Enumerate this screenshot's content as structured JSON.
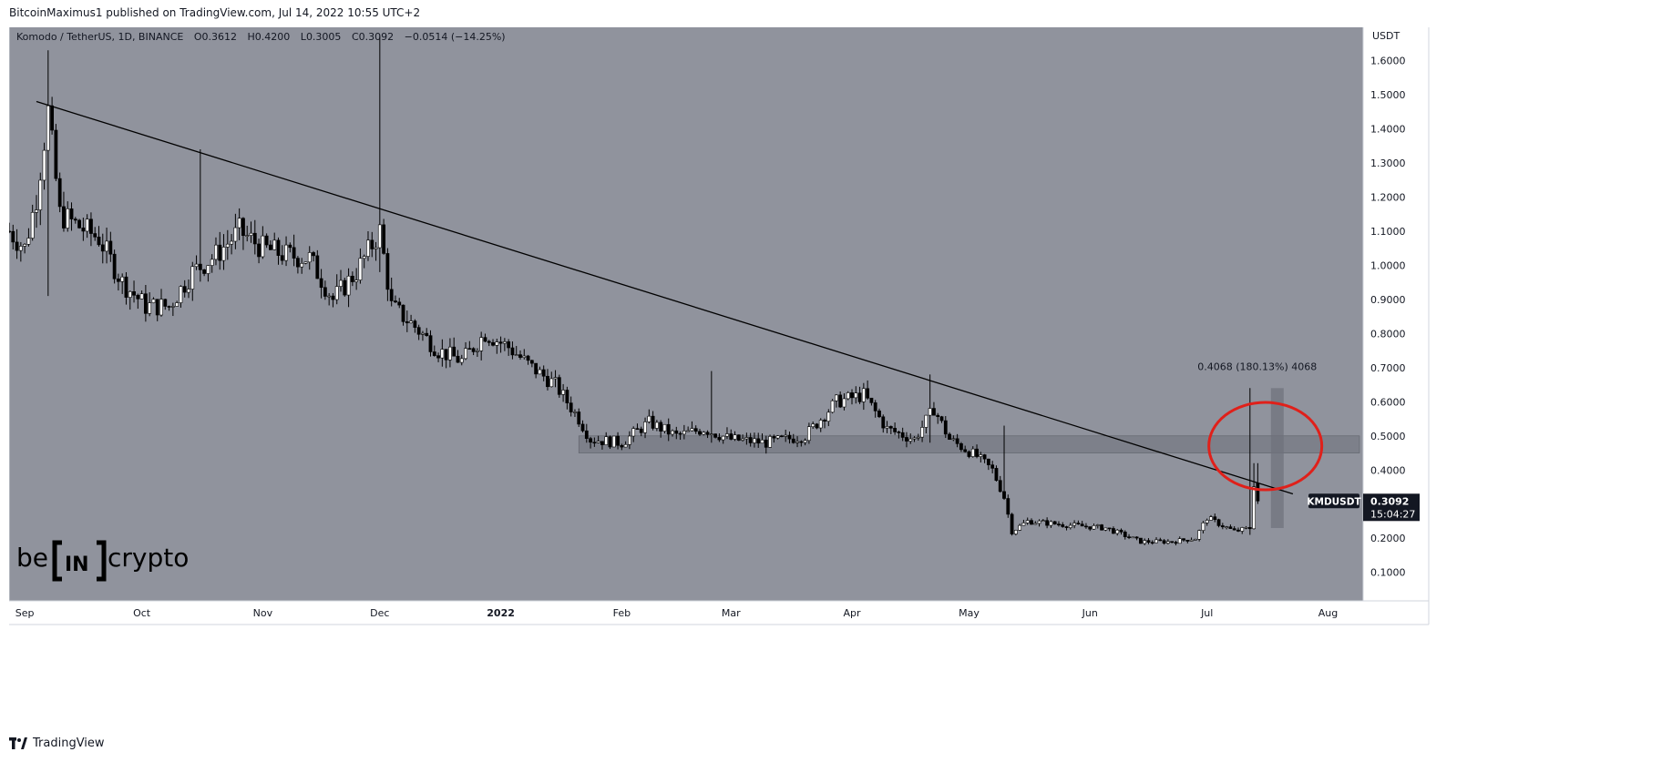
{
  "header": {
    "published_by": "BitcoinMaximus1 published on TradingView.com, Jul 14, 2022 10:55 UTC+2"
  },
  "legend": {
    "symbol_description": "Komodo / TetherUS, 1D, BINANCE",
    "o_label": "O",
    "o_value": "0.3612",
    "h_label": "H",
    "h_value": "0.4200",
    "l_label": "L",
    "l_value": "0.3005",
    "c_label": "C",
    "c_value": "0.3092",
    "change": "−0.0514 (−14.25%)"
  },
  "price_axis": {
    "currency": "USDT"
  },
  "last_price": {
    "ticker": "KMDUSDT",
    "price": "0.3092",
    "countdown": "15:04:27"
  },
  "measure": {
    "label": "0.4068 (180.13%) 4068"
  },
  "watermark": {
    "be": "be",
    "in": "IN",
    "crypto": "crypto"
  },
  "footer": {
    "brand": "TradingView"
  },
  "colors": {
    "chart_bg": "#90939d",
    "candle_up": "#ffffff",
    "candle_down": "#000000",
    "trendline": "#000000",
    "support_zone": "#6e717a",
    "circle": "#e0201a",
    "price_tag_bg": "#131722"
  },
  "chart_data": {
    "type": "candlestick",
    "symbol": "Komodo / TetherUS",
    "interval": "1D",
    "exchange": "BINANCE",
    "y_axis": {
      "unit": "USDT",
      "ylim": [
        0.05,
        1.75
      ],
      "ticks": [
        "1.6000",
        "1.5000",
        "1.4000",
        "1.3000",
        "1.2000",
        "1.1000",
        "1.0000",
        "0.9000",
        "0.8000",
        "0.7000",
        "0.6000",
        "0.5000",
        "0.4000",
        "0.3000",
        "0.2000",
        "0.1000"
      ]
    },
    "x_axis": {
      "ticks": [
        "Sep",
        "Oct",
        "Nov",
        "Dec",
        "2022",
        "Feb",
        "Mar",
        "Apr",
        "May",
        "Jun",
        "Jul",
        "Aug"
      ]
    },
    "x_range": [
      "2021-08-28",
      "2022-08-10"
    ],
    "grid": false,
    "trendline": {
      "from": {
        "date": "2021-09-04",
        "price": 1.48
      },
      "to": {
        "date": "2022-07-23",
        "price": 0.33
      }
    },
    "support_zone": {
      "from_date": "2022-01-21",
      "to_date": "2022-08-10",
      "low": 0.45,
      "high": 0.5
    },
    "highlight_circle": {
      "date": "2022-07-15",
      "price": 0.47
    },
    "measure_bar": {
      "date": "2022-07-19",
      "low": 0.23,
      "high": 0.64
    },
    "path": [
      {
        "date": "2021-08-28",
        "price": 1.1
      },
      {
        "date": "2021-09-01",
        "price": 1.05
      },
      {
        "date": "2021-09-04",
        "price": 1.2
      },
      {
        "date": "2021-09-07",
        "price": 1.45
      },
      {
        "date": "2021-09-10",
        "price": 1.15
      },
      {
        "date": "2021-09-14",
        "price": 1.12
      },
      {
        "date": "2021-09-20",
        "price": 1.08
      },
      {
        "date": "2021-09-26",
        "price": 0.95
      },
      {
        "date": "2021-10-02",
        "price": 0.88
      },
      {
        "date": "2021-10-08",
        "price": 0.88
      },
      {
        "date": "2021-10-14",
        "price": 0.98
      },
      {
        "date": "2021-10-20",
        "price": 1.03
      },
      {
        "date": "2021-10-26",
        "price": 1.1
      },
      {
        "date": "2021-11-01",
        "price": 1.05
      },
      {
        "date": "2021-11-07",
        "price": 1.03
      },
      {
        "date": "2021-11-13",
        "price": 1.02
      },
      {
        "date": "2021-11-19",
        "price": 0.9
      },
      {
        "date": "2021-11-25",
        "price": 0.98
      },
      {
        "date": "2021-12-01",
        "price": 1.1
      },
      {
        "date": "2021-12-04",
        "price": 0.88
      },
      {
        "date": "2021-12-10",
        "price": 0.82
      },
      {
        "date": "2021-12-16",
        "price": 0.75
      },
      {
        "date": "2021-12-22",
        "price": 0.72
      },
      {
        "date": "2021-12-28",
        "price": 0.8
      },
      {
        "date": "2022-01-03",
        "price": 0.76
      },
      {
        "date": "2022-01-09",
        "price": 0.7
      },
      {
        "date": "2022-01-15",
        "price": 0.65
      },
      {
        "date": "2022-01-21",
        "price": 0.55
      },
      {
        "date": "2022-01-24",
        "price": 0.49
      },
      {
        "date": "2022-02-01",
        "price": 0.48
      },
      {
        "date": "2022-02-08",
        "price": 0.54
      },
      {
        "date": "2022-02-15",
        "price": 0.5
      },
      {
        "date": "2022-02-22",
        "price": 0.52
      },
      {
        "date": "2022-03-01",
        "price": 0.49
      },
      {
        "date": "2022-03-10",
        "price": 0.48
      },
      {
        "date": "2022-03-20",
        "price": 0.5
      },
      {
        "date": "2022-03-28",
        "price": 0.6
      },
      {
        "date": "2022-04-04",
        "price": 0.62
      },
      {
        "date": "2022-04-10",
        "price": 0.52
      },
      {
        "date": "2022-04-17",
        "price": 0.49
      },
      {
        "date": "2022-04-22",
        "price": 0.58
      },
      {
        "date": "2022-04-26",
        "price": 0.49
      },
      {
        "date": "2022-05-03",
        "price": 0.44
      },
      {
        "date": "2022-05-07",
        "price": 0.4
      },
      {
        "date": "2022-05-10",
        "price": 0.32
      },
      {
        "date": "2022-05-12",
        "price": 0.22
      },
      {
        "date": "2022-05-16",
        "price": 0.25
      },
      {
        "date": "2022-05-25",
        "price": 0.24
      },
      {
        "date": "2022-06-05",
        "price": 0.23
      },
      {
        "date": "2022-06-14",
        "price": 0.19
      },
      {
        "date": "2022-06-22",
        "price": 0.19
      },
      {
        "date": "2022-06-28",
        "price": 0.2
      },
      {
        "date": "2022-07-01",
        "price": 0.26
      },
      {
        "date": "2022-07-08",
        "price": 0.22
      },
      {
        "date": "2022-07-12",
        "price": 0.23
      },
      {
        "date": "2022-07-13",
        "price": 0.36
      },
      {
        "date": "2022-07-14",
        "price": 0.31
      }
    ],
    "spikes": [
      {
        "date": "2021-09-07",
        "high": 1.63,
        "low": 0.91
      },
      {
        "date": "2021-10-16",
        "high": 1.34,
        "low": 1.1
      },
      {
        "date": "2021-12-01",
        "high": 1.67,
        "low": 0.98
      },
      {
        "date": "2022-02-24",
        "high": 0.69,
        "low": 0.48
      },
      {
        "date": "2022-04-21",
        "high": 0.68,
        "low": 0.48
      },
      {
        "date": "2022-05-10",
        "high": 0.53,
        "low": 0.4
      },
      {
        "date": "2022-07-12",
        "high": 0.64,
        "low": 0.21
      },
      {
        "date": "2022-07-13",
        "high": 0.42,
        "low": 0.3
      }
    ],
    "last": {
      "open": 0.3612,
      "high": 0.42,
      "low": 0.3005,
      "close": 0.3092
    }
  }
}
